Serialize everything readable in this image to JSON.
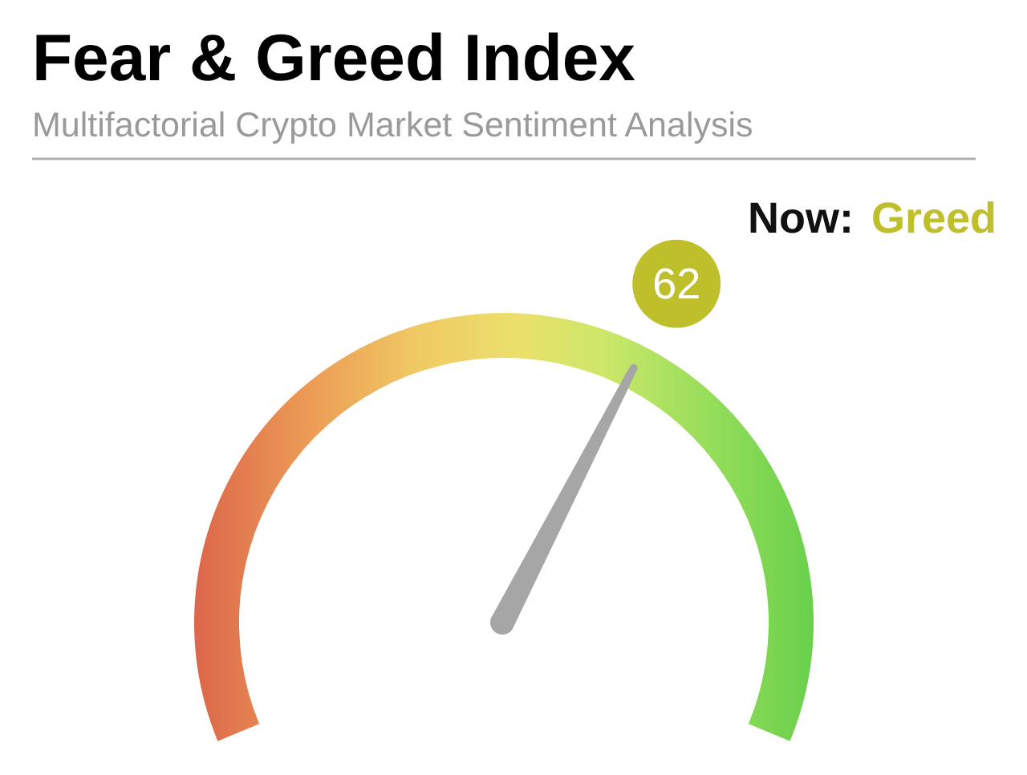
{
  "chart_data": {
    "type": "other",
    "title": "Fear & Greed Index",
    "subtitle": "Multifactorial Crypto Market Sentiment Analysis",
    "annotations": [
      "Now:"
    ],
    "categories": [
      "Greed"
    ],
    "values": [
      62
    ],
    "colors": [
      "#bfbf2b"
    ],
    "data_labels": true
  }
}
